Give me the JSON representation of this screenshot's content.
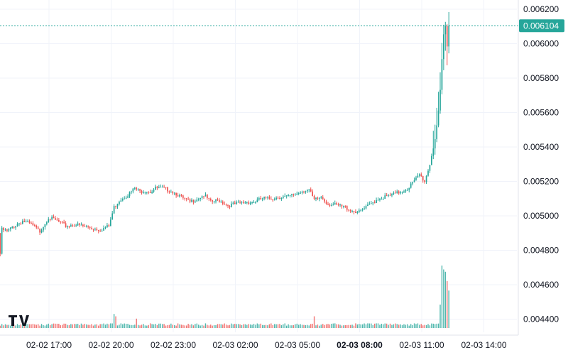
{
  "chart_data": {
    "type": "candlestick",
    "title": "",
    "xlabel": "",
    "ylabel": "",
    "ylim": [
      0.00433,
      0.00622
    ],
    "y_ticks": [
      "0.006200",
      "0.006000",
      "0.005800",
      "0.005600",
      "0.005400",
      "0.005200",
      "0.005000",
      "0.004800",
      "0.004600",
      "0.004400"
    ],
    "y_tick_values": [
      0.0062,
      0.006,
      0.0058,
      0.0056,
      0.0054,
      0.0052,
      0.005,
      0.0048,
      0.0046,
      0.0044
    ],
    "x_ticks": [
      "02-02 17:00",
      "02-02 20:00",
      "02-02 23:00",
      "02-03 02:00",
      "02-03 05:00",
      "02-03 08:00",
      "02-03 11:00",
      "02-03 14:00"
    ],
    "x_tick_bold": [
      false,
      false,
      false,
      false,
      false,
      true,
      false,
      false
    ],
    "x_tick_hours": [
      0,
      3,
      6,
      9,
      12,
      15,
      18,
      21
    ],
    "x_start_hours": -2.4,
    "candle_minutes": 5,
    "last_price": 0.006104,
    "last_price_label": "0.006104",
    "up_color": "#26a69a",
    "down_color": "#ef5350",
    "grid": true,
    "logo": "TV",
    "close_anchors": [
      [
        0,
        0.00478
      ],
      [
        1,
        0.00492
      ],
      [
        4,
        0.00491
      ],
      [
        8,
        0.00494
      ],
      [
        13,
        0.00497
      ],
      [
        18,
        0.00495
      ],
      [
        23,
        0.00491
      ],
      [
        28,
        0.00499
      ],
      [
        33,
        0.00497
      ],
      [
        38,
        0.00494
      ],
      [
        43,
        0.00495
      ],
      [
        48,
        0.00494
      ],
      [
        53,
        0.00493
      ],
      [
        58,
        0.00492
      ],
      [
        63,
        0.00494
      ],
      [
        66,
        0.00505
      ],
      [
        69,
        0.00509
      ],
      [
        72,
        0.00511
      ],
      [
        75,
        0.00513
      ],
      [
        78,
        0.00516
      ],
      [
        81,
        0.00514
      ],
      [
        84,
        0.00515
      ],
      [
        87,
        0.00514
      ],
      [
        90,
        0.00516
      ],
      [
        94,
        0.00516
      ],
      [
        98,
        0.00515
      ],
      [
        102,
        0.00513
      ],
      [
        106,
        0.0051
      ],
      [
        110,
        0.00508
      ],
      [
        114,
        0.0051
      ],
      [
        118,
        0.00512
      ],
      [
        122,
        0.00508
      ],
      [
        127,
        0.00509
      ],
      [
        132,
        0.00506
      ],
      [
        137,
        0.00507
      ],
      [
        142,
        0.00508
      ],
      [
        147,
        0.00508
      ],
      [
        152,
        0.0051
      ],
      [
        157,
        0.0051
      ],
      [
        162,
        0.00511
      ],
      [
        167,
        0.00511
      ],
      [
        172,
        0.00513
      ],
      [
        176,
        0.00515
      ],
      [
        179,
        0.00515
      ],
      [
        182,
        0.00509
      ],
      [
        186,
        0.00511
      ],
      [
        190,
        0.00507
      ],
      [
        195,
        0.00506
      ],
      [
        200,
        0.00505
      ],
      [
        204,
        0.00503
      ],
      [
        208,
        0.00502
      ],
      [
        211,
        0.00504
      ],
      [
        215,
        0.00507
      ],
      [
        219,
        0.0051
      ],
      [
        223,
        0.00511
      ],
      [
        227,
        0.00512
      ],
      [
        232,
        0.00514
      ],
      [
        236,
        0.00516
      ],
      [
        240,
        0.0052
      ],
      [
        243,
        0.00524
      ],
      [
        246,
        0.0052
      ],
      [
        249,
        0.0053
      ],
      [
        252,
        0.00545
      ],
      [
        254,
        0.0056
      ],
      [
        255,
        0.00572
      ],
      [
        256,
        0.0059
      ],
      [
        257,
        0.00605
      ],
      [
        258,
        0.0061
      ],
      [
        259,
        0.00598
      ],
      [
        260,
        0.006104
      ]
    ],
    "volume_spikes": [
      [
        66,
        0.18
      ],
      [
        67,
        0.15
      ],
      [
        79,
        0.12
      ],
      [
        182,
        0.15
      ],
      [
        256,
        0.8
      ],
      [
        257,
        0.75
      ],
      [
        258,
        0.72
      ],
      [
        259,
        0.6
      ],
      [
        260,
        0.48
      ],
      [
        255,
        0.3
      ]
    ]
  }
}
